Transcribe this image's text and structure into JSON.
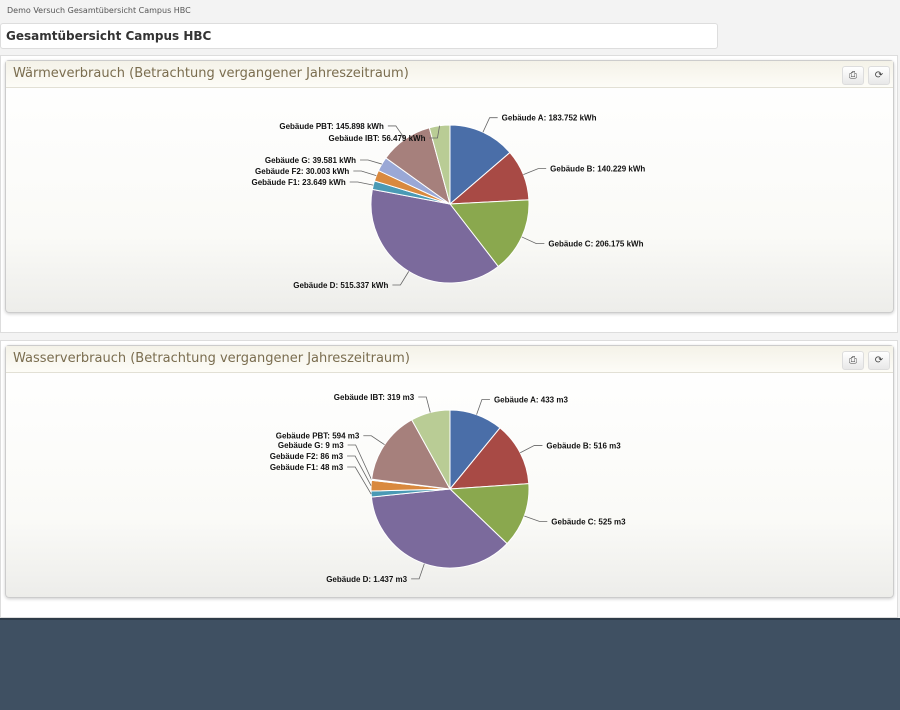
{
  "breadcrumb": "Demo Versuch Gesamtübersicht Campus HBC",
  "page_title": "Gesamtübersicht Campus HBC",
  "icons": {
    "print": "print-icon",
    "refresh": "refresh-icon"
  },
  "chart_data": [
    {
      "type": "pie",
      "title": "Wärmeverbrauch (Betrachtung vergangener Jahreszeitraum)",
      "unit": "kWh",
      "slices": [
        {
          "name": "Gebäude A",
          "value": 183752,
          "label": "Gebäude A: 183.752 kWh",
          "color": "#4a6ea8"
        },
        {
          "name": "Gebäude B",
          "value": 140229,
          "label": "Gebäude B: 140.229 kWh",
          "color": "#a84a45"
        },
        {
          "name": "Gebäude C",
          "value": 206175,
          "label": "Gebäude C: 206.175 kWh",
          "color": "#8aa84e"
        },
        {
          "name": "Gebäude D",
          "value": 515337,
          "label": "Gebäude D: 515.337 kWh",
          "color": "#7b6a9c"
        },
        {
          "name": "Gebäude F1",
          "value": 23649,
          "label": "Gebäude F1: 23.649 kWh",
          "color": "#4a9ab5"
        },
        {
          "name": "Gebäude F2",
          "value": 30003,
          "label": "Gebäude F2: 30.003 kWh",
          "color": "#d9893e"
        },
        {
          "name": "Gebäude G",
          "value": 39581,
          "label": "Gebäude G: 39.581 kWh",
          "color": "#9aa8d6"
        },
        {
          "name": "Gebäude PBT",
          "value": 145898,
          "label": "Gebäude PBT: 145.898 kWh",
          "color": "#a6807c"
        },
        {
          "name": "Gebäude IBT",
          "value": 56479,
          "label": "Gebäude IBT: 56.479 kWh",
          "color": "#b9cc95"
        }
      ]
    },
    {
      "type": "pie",
      "title": "Wasserverbrauch (Betrachtung vergangener Jahreszeitraum)",
      "unit": "m3",
      "slices": [
        {
          "name": "Gebäude A",
          "value": 433,
          "label": "Gebäude A: 433 m3",
          "color": "#4a6ea8"
        },
        {
          "name": "Gebäude B",
          "value": 516,
          "label": "Gebäude B: 516 m3",
          "color": "#a84a45"
        },
        {
          "name": "Gebäude C",
          "value": 525,
          "label": "Gebäude C: 525 m3",
          "color": "#8aa84e"
        },
        {
          "name": "Gebäude D",
          "value": 1437,
          "label": "Gebäude D: 1.437 m3",
          "color": "#7b6a9c"
        },
        {
          "name": "Gebäude F1",
          "value": 48,
          "label": "Gebäude F1: 48 m3",
          "color": "#4a9ab5"
        },
        {
          "name": "Gebäude F2",
          "value": 86,
          "label": "Gebäude F2: 86 m3",
          "color": "#d9893e"
        },
        {
          "name": "Gebäude G",
          "value": 9,
          "label": "Gebäude G: 9 m3",
          "color": "#9aa8d6"
        },
        {
          "name": "Gebäude PBT",
          "value": 594,
          "label": "Gebäude PBT: 594 m3",
          "color": "#a6807c"
        },
        {
          "name": "Gebäude IBT",
          "value": 319,
          "label": "Gebäude IBT: 319 m3",
          "color": "#b9cc95"
        }
      ]
    }
  ]
}
